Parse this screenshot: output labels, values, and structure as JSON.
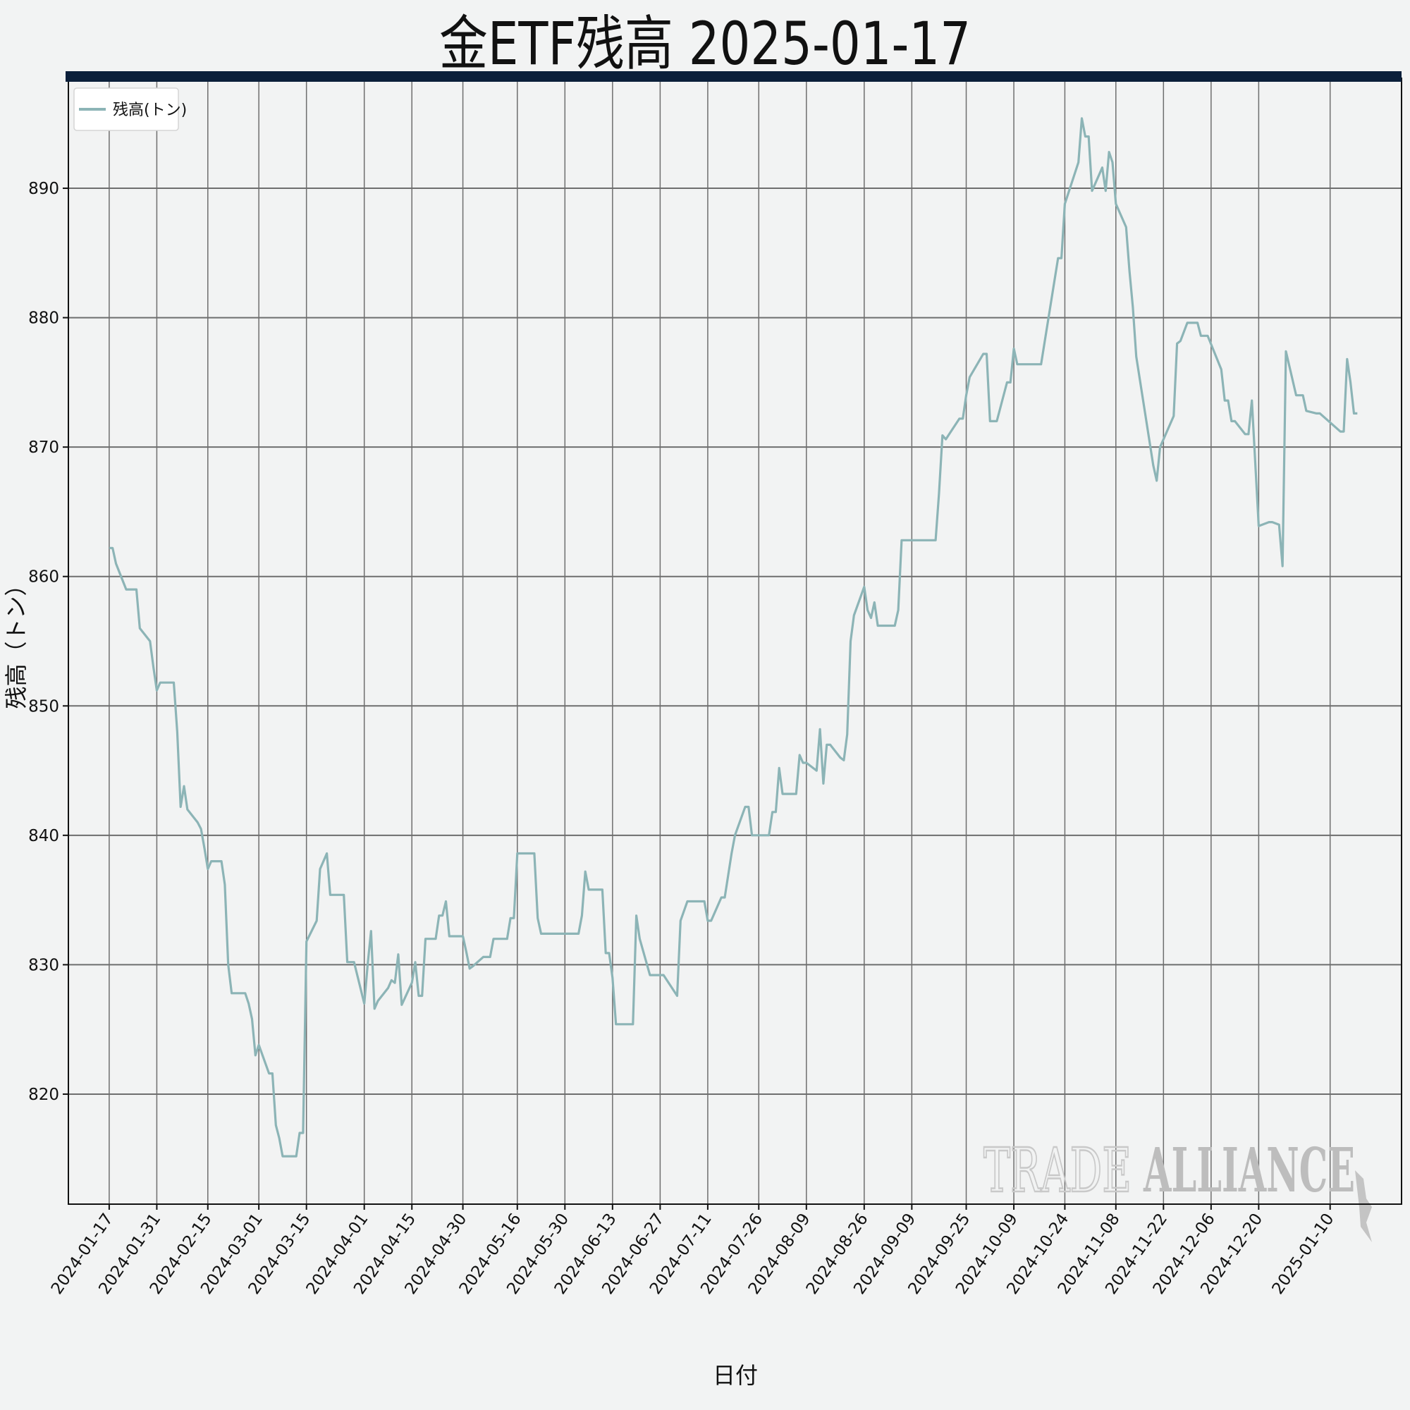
{
  "chart_data": {
    "type": "line",
    "title": "金ETF残高 2025-01-17",
    "xlabel": "日付",
    "ylabel": "残高（トン）",
    "ylim": [
      811.5,
      898.5
    ],
    "yticks": [
      820,
      830,
      840,
      850,
      860,
      870,
      880,
      890
    ],
    "xlim": [
      "2024-01-05",
      "2025-01-31"
    ],
    "xticks": [
      "2024-01-17",
      "2024-01-31",
      "2024-02-15",
      "2024-03-01",
      "2024-03-15",
      "2024-04-01",
      "2024-04-15",
      "2024-04-30",
      "2024-05-16",
      "2024-05-30",
      "2024-06-13",
      "2024-06-27",
      "2024-07-11",
      "2024-07-26",
      "2024-08-09",
      "2024-08-26",
      "2024-09-09",
      "2024-09-25",
      "2024-10-09",
      "2024-10-24",
      "2024-11-08",
      "2024-11-22",
      "2024-12-06",
      "2024-12-20",
      "2025-01-10"
    ],
    "grid": true,
    "legend_position": "top-left",
    "accent_color": "#0b1f3a",
    "series": [
      {
        "name": "残高(トン)",
        "color": "#8cb4b6",
        "points": [
          [
            "2024-01-17",
            862.2
          ],
          [
            "2024-01-18",
            862.2
          ],
          [
            "2024-01-19",
            861.0
          ],
          [
            "2024-01-22",
            859.0
          ],
          [
            "2024-01-23",
            859.0
          ],
          [
            "2024-01-24",
            859.0
          ],
          [
            "2024-01-25",
            859.0
          ],
          [
            "2024-01-26",
            856.0
          ],
          [
            "2024-01-29",
            855.0
          ],
          [
            "2024-01-30",
            853.0
          ],
          [
            "2024-01-31",
            851.2
          ],
          [
            "2024-02-01",
            851.8
          ],
          [
            "2024-02-02",
            851.8
          ],
          [
            "2024-02-05",
            851.8
          ],
          [
            "2024-02-06",
            848.0
          ],
          [
            "2024-02-07",
            842.2
          ],
          [
            "2024-02-08",
            843.8
          ],
          [
            "2024-02-09",
            842.0
          ],
          [
            "2024-02-12",
            841.0
          ],
          [
            "2024-02-13",
            840.5
          ],
          [
            "2024-02-14",
            839.0
          ],
          [
            "2024-02-15",
            837.4
          ],
          [
            "2024-02-16",
            838.0
          ],
          [
            "2024-02-19",
            838.0
          ],
          [
            "2024-02-20",
            836.2
          ],
          [
            "2024-02-21",
            830.0
          ],
          [
            "2024-02-22",
            827.8
          ],
          [
            "2024-02-23",
            827.8
          ],
          [
            "2024-02-26",
            827.8
          ],
          [
            "2024-02-27",
            827.0
          ],
          [
            "2024-02-28",
            825.8
          ],
          [
            "2024-02-29",
            823.0
          ],
          [
            "2024-03-01",
            823.8
          ],
          [
            "2024-03-04",
            821.6
          ],
          [
            "2024-03-05",
            821.6
          ],
          [
            "2024-03-06",
            817.6
          ],
          [
            "2024-03-07",
            816.6
          ],
          [
            "2024-03-08",
            815.2
          ],
          [
            "2024-03-11",
            815.2
          ],
          [
            "2024-03-12",
            815.2
          ],
          [
            "2024-03-13",
            817.0
          ],
          [
            "2024-03-14",
            817.0
          ],
          [
            "2024-03-15",
            831.8
          ],
          [
            "2024-03-18",
            833.4
          ],
          [
            "2024-03-19",
            837.4
          ],
          [
            "2024-03-20",
            838.0
          ],
          [
            "2024-03-21",
            838.6
          ],
          [
            "2024-03-22",
            835.4
          ],
          [
            "2024-03-25",
            835.4
          ],
          [
            "2024-03-26",
            835.4
          ],
          [
            "2024-03-27",
            830.2
          ],
          [
            "2024-03-28",
            830.2
          ],
          [
            "2024-03-29",
            830.2
          ],
          [
            "2024-04-01",
            827.0
          ],
          [
            "2024-04-02",
            830.0
          ],
          [
            "2024-04-03",
            832.6
          ],
          [
            "2024-04-04",
            826.6
          ],
          [
            "2024-04-05",
            827.2
          ],
          [
            "2024-04-08",
            828.2
          ],
          [
            "2024-04-09",
            828.8
          ],
          [
            "2024-04-10",
            828.6
          ],
          [
            "2024-04-11",
            830.8
          ],
          [
            "2024-04-12",
            826.9
          ],
          [
            "2024-04-15",
            828.6
          ],
          [
            "2024-04-16",
            830.2
          ],
          [
            "2024-04-17",
            827.6
          ],
          [
            "2024-04-18",
            827.6
          ],
          [
            "2024-04-19",
            832.0
          ],
          [
            "2024-04-22",
            832.0
          ],
          [
            "2024-04-23",
            833.8
          ],
          [
            "2024-04-24",
            833.8
          ],
          [
            "2024-04-25",
            834.9
          ],
          [
            "2024-04-26",
            832.2
          ],
          [
            "2024-04-29",
            832.2
          ],
          [
            "2024-04-30",
            832.2
          ],
          [
            "2024-05-01",
            831.0
          ],
          [
            "2024-05-02",
            829.7
          ],
          [
            "2024-05-03",
            829.9
          ],
          [
            "2024-05-06",
            830.6
          ],
          [
            "2024-05-07",
            830.6
          ],
          [
            "2024-05-08",
            830.6
          ],
          [
            "2024-05-09",
            832.0
          ],
          [
            "2024-05-10",
            832.0
          ],
          [
            "2024-05-13",
            832.0
          ],
          [
            "2024-05-14",
            833.6
          ],
          [
            "2024-05-15",
            833.6
          ],
          [
            "2024-05-16",
            838.6
          ],
          [
            "2024-05-17",
            838.6
          ],
          [
            "2024-05-20",
            838.6
          ],
          [
            "2024-05-21",
            838.6
          ],
          [
            "2024-05-22",
            833.6
          ],
          [
            "2024-05-23",
            832.4
          ],
          [
            "2024-05-24",
            832.4
          ],
          [
            "2024-05-28",
            832.4
          ],
          [
            "2024-05-29",
            832.4
          ],
          [
            "2024-05-30",
            832.4
          ],
          [
            "2024-05-31",
            832.4
          ],
          [
            "2024-06-03",
            832.4
          ],
          [
            "2024-06-04",
            833.8
          ],
          [
            "2024-06-05",
            837.2
          ],
          [
            "2024-06-06",
            835.8
          ],
          [
            "2024-06-07",
            835.8
          ],
          [
            "2024-06-10",
            835.8
          ],
          [
            "2024-06-11",
            830.9
          ],
          [
            "2024-06-12",
            830.9
          ],
          [
            "2024-06-13",
            829.0
          ],
          [
            "2024-06-14",
            825.4
          ],
          [
            "2024-06-17",
            825.4
          ],
          [
            "2024-06-18",
            825.4
          ],
          [
            "2024-06-19",
            825.4
          ],
          [
            "2024-06-20",
            833.8
          ],
          [
            "2024-06-21",
            832.0
          ],
          [
            "2024-06-24",
            829.2
          ],
          [
            "2024-06-25",
            829.2
          ],
          [
            "2024-06-26",
            829.2
          ],
          [
            "2024-06-27",
            829.2
          ],
          [
            "2024-06-28",
            829.2
          ],
          [
            "2024-07-02",
            827.6
          ],
          [
            "2024-07-03",
            833.4
          ],
          [
            "2024-07-05",
            834.9
          ],
          [
            "2024-07-08",
            834.9
          ],
          [
            "2024-07-09",
            834.9
          ],
          [
            "2024-07-10",
            834.9
          ],
          [
            "2024-07-11",
            833.4
          ],
          [
            "2024-07-12",
            833.4
          ],
          [
            "2024-07-15",
            835.2
          ],
          [
            "2024-07-16",
            835.2
          ],
          [
            "2024-07-18",
            838.6
          ],
          [
            "2024-07-19",
            840.0
          ],
          [
            "2024-07-22",
            842.2
          ],
          [
            "2024-07-23",
            842.2
          ],
          [
            "2024-07-24",
            840.0
          ],
          [
            "2024-07-25",
            840.0
          ],
          [
            "2024-07-26",
            840.0
          ],
          [
            "2024-07-29",
            840.0
          ],
          [
            "2024-07-30",
            841.8
          ],
          [
            "2024-07-31",
            841.8
          ],
          [
            "2024-08-01",
            845.2
          ],
          [
            "2024-08-02",
            843.2
          ],
          [
            "2024-08-05",
            843.2
          ],
          [
            "2024-08-06",
            843.2
          ],
          [
            "2024-08-07",
            846.2
          ],
          [
            "2024-08-08",
            845.6
          ],
          [
            "2024-08-09",
            845.6
          ],
          [
            "2024-08-12",
            845.0
          ],
          [
            "2024-08-13",
            848.2
          ],
          [
            "2024-08-14",
            844.0
          ],
          [
            "2024-08-15",
            847.0
          ],
          [
            "2024-08-16",
            847.0
          ],
          [
            "2024-08-19",
            846.0
          ],
          [
            "2024-08-20",
            845.8
          ],
          [
            "2024-08-21",
            847.8
          ],
          [
            "2024-08-22",
            855.0
          ],
          [
            "2024-08-23",
            857.0
          ],
          [
            "2024-08-26",
            859.2
          ],
          [
            "2024-08-27",
            857.4
          ],
          [
            "2024-08-28",
            856.8
          ],
          [
            "2024-08-29",
            858.0
          ],
          [
            "2024-08-30",
            856.2
          ],
          [
            "2024-09-03",
            856.2
          ],
          [
            "2024-09-04",
            856.2
          ],
          [
            "2024-09-05",
            857.4
          ],
          [
            "2024-09-06",
            862.8
          ],
          [
            "2024-09-09",
            862.8
          ],
          [
            "2024-09-10",
            862.8
          ],
          [
            "2024-09-11",
            862.8
          ],
          [
            "2024-09-12",
            862.8
          ],
          [
            "2024-09-13",
            862.8
          ],
          [
            "2024-09-16",
            862.8
          ],
          [
            "2024-09-17",
            866.4
          ],
          [
            "2024-09-18",
            870.9
          ],
          [
            "2024-09-19",
            870.6
          ],
          [
            "2024-09-20",
            871.0
          ],
          [
            "2024-09-23",
            872.2
          ],
          [
            "2024-09-24",
            872.2
          ],
          [
            "2024-09-25",
            874.0
          ],
          [
            "2024-09-26",
            875.4
          ],
          [
            "2024-09-30",
            877.2
          ],
          [
            "2024-10-01",
            877.2
          ],
          [
            "2024-10-02",
            872.0
          ],
          [
            "2024-10-03",
            872.0
          ],
          [
            "2024-10-04",
            872.0
          ],
          [
            "2024-10-07",
            875.0
          ],
          [
            "2024-10-08",
            875.0
          ],
          [
            "2024-10-09",
            877.6
          ],
          [
            "2024-10-10",
            876.4
          ],
          [
            "2024-10-11",
            876.4
          ],
          [
            "2024-10-14",
            876.4
          ],
          [
            "2024-10-15",
            876.4
          ],
          [
            "2024-10-16",
            876.4
          ],
          [
            "2024-10-17",
            876.4
          ],
          [
            "2024-10-22",
            884.6
          ],
          [
            "2024-10-23",
            884.6
          ],
          [
            "2024-10-24",
            888.8
          ],
          [
            "2024-10-28",
            892.0
          ],
          [
            "2024-10-29",
            895.4
          ],
          [
            "2024-10-30",
            894.0
          ],
          [
            "2024-10-31",
            894.0
          ],
          [
            "2024-11-01",
            889.8
          ],
          [
            "2024-11-04",
            891.6
          ],
          [
            "2024-11-05",
            889.8
          ],
          [
            "2024-11-06",
            892.8
          ],
          [
            "2024-11-07",
            892.0
          ],
          [
            "2024-11-08",
            888.8
          ],
          [
            "2024-11-11",
            887.0
          ],
          [
            "2024-11-12",
            883.6
          ],
          [
            "2024-11-13",
            880.8
          ],
          [
            "2024-11-14",
            877.0
          ],
          [
            "2024-11-19",
            868.6
          ],
          [
            "2024-11-20",
            867.4
          ],
          [
            "2024-11-21",
            870.0
          ],
          [
            "2024-11-25",
            872.4
          ],
          [
            "2024-11-26",
            878.0
          ],
          [
            "2024-11-27",
            878.2
          ],
          [
            "2024-11-29",
            879.6
          ],
          [
            "2024-12-02",
            879.6
          ],
          [
            "2024-12-03",
            878.6
          ],
          [
            "2024-12-04",
            878.6
          ],
          [
            "2024-12-05",
            878.6
          ],
          [
            "2024-12-09",
            876.0
          ],
          [
            "2024-12-10",
            873.6
          ],
          [
            "2024-12-11",
            873.6
          ],
          [
            "2024-12-12",
            872.0
          ],
          [
            "2024-12-13",
            872.0
          ],
          [
            "2024-12-16",
            871.0
          ],
          [
            "2024-12-17",
            871.0
          ],
          [
            "2024-12-18",
            873.6
          ],
          [
            "2024-12-20",
            863.9
          ],
          [
            "2024-12-23",
            864.2
          ],
          [
            "2024-12-24",
            864.2
          ],
          [
            "2024-12-26",
            864.0
          ],
          [
            "2024-12-27",
            860.8
          ],
          [
            "2024-12-28",
            877.4
          ],
          [
            "2024-12-31",
            874.0
          ],
          [
            "2025-01-02",
            874.0
          ],
          [
            "2025-01-03",
            872.8
          ],
          [
            "2025-01-06",
            872.6
          ],
          [
            "2025-01-07",
            872.6
          ],
          [
            "2025-01-13",
            871.2
          ],
          [
            "2025-01-14",
            871.2
          ],
          [
            "2025-01-15",
            876.8
          ],
          [
            "2025-01-16",
            875.0
          ],
          [
            "2025-01-17",
            872.6
          ],
          [
            "2025-01-18",
            872.6
          ]
        ]
      }
    ]
  },
  "watermark": {
    "word1": "TRADE",
    "word2": "ALLIANCE"
  }
}
